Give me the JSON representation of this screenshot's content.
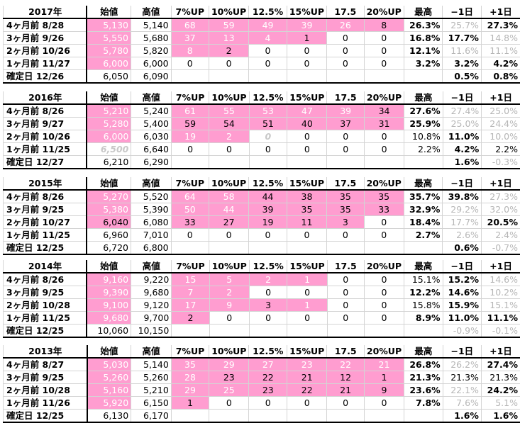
{
  "headers": {
    "open": "始値",
    "high": "高値",
    "p7": "7%UP",
    "p10": "10%UP",
    "p125": "12.5%",
    "p15": "15%UP",
    "p175": "17.5",
    "p20": "20%UP",
    "max": "最高",
    "minus1": "−1日",
    "plus1": "+1日"
  },
  "blocks": [
    {
      "year": "2017年",
      "rows": [
        {
          "label": "4ヶ月前 8/28",
          "open": "5,130",
          "high": "5,140",
          "p7": "68",
          "p10": "59",
          "p125": "49",
          "p15": "39",
          "p175": "26",
          "p20": "8",
          "max": "26.3%",
          "m1": "25.7%",
          "p1": "27.3%"
        },
        {
          "label": "3ヶ月前 9/26",
          "open": "5,550",
          "high": "5,680",
          "p7": "37",
          "p10": "13",
          "p125": "4",
          "p15": "1",
          "p175": "0",
          "p20": "0",
          "max": "16.8%",
          "m1": "17.7%",
          "p1": "14.8%"
        },
        {
          "label": "2ヶ月前 10/26",
          "open": "5,780",
          "high": "5,820",
          "p7": "8",
          "p10": "2",
          "p125": "0",
          "p15": "0",
          "p175": "0",
          "p20": "0",
          "max": "12.1%",
          "m1": "11.6%",
          "p1": "11.1%"
        },
        {
          "label": "1ヶ月前 11/27",
          "open": "6,000",
          "high": "6,000",
          "p7": "0",
          "p10": "0",
          "p125": "0",
          "p15": "0",
          "p175": "0",
          "p20": "0",
          "max": "3.2%",
          "m1": "3.2%",
          "p1": "4.2%"
        }
      ],
      "final": {
        "label": "確定日 12/26",
        "open": "6,050",
        "high": "6,090",
        "m1": "0.5%",
        "p1": "0.8%"
      }
    },
    {
      "year": "2016年",
      "rows": [
        {
          "label": "4ヶ月前 8/26",
          "open": "5,210",
          "high": "5,240",
          "p7": "61",
          "p10": "55",
          "p125": "53",
          "p15": "47",
          "p175": "39",
          "p20": "34",
          "max": "27.6%",
          "m1": "27.4%",
          "p1": "25.0%"
        },
        {
          "label": "3ヶ月前 9/27",
          "open": "5,280",
          "high": "5,400",
          "p7": "59",
          "p10": "54",
          "p125": "51",
          "p15": "40",
          "p175": "37",
          "p20": "31",
          "max": "25.9%",
          "m1": "25.0%",
          "p1": "24.4%"
        },
        {
          "label": "2ヶ月前 10/26",
          "open": "6,000",
          "high": "6,030",
          "p7": "19",
          "p10": "2",
          "p125": "0",
          "p15": "0",
          "p175": "0",
          "p20": "0",
          "max": "10.8%",
          "m1": "11.0%",
          "p1": "10.0%"
        },
        {
          "label": "1ヶ月前 11/25",
          "open": "6,500",
          "high": "6,640",
          "p7": "0",
          "p10": "0",
          "p125": "0",
          "p15": "0",
          "p175": "0",
          "p20": "0",
          "max": "2.2%",
          "m1": "4.2%",
          "p1": "2.2%"
        }
      ],
      "final": {
        "label": "確定日 12/27",
        "open": "6,210",
        "high": "6,290",
        "m1": "1.6%",
        "p1": "-0.3%"
      }
    },
    {
      "year": "2015年",
      "rows": [
        {
          "label": "4ヶ月前 8/26",
          "open": "5,270",
          "high": "5,520",
          "p7": "64",
          "p10": "58",
          "p125": "44",
          "p15": "38",
          "p175": "35",
          "p20": "35",
          "max": "35.7%",
          "m1": "39.8%",
          "p1": "27.3%"
        },
        {
          "label": "3ヶ月前 9/25",
          "open": "5,380",
          "high": "5,390",
          "p7": "50",
          "p10": "44",
          "p125": "39",
          "p15": "35",
          "p175": "35",
          "p20": "33",
          "max": "32.9%",
          "m1": "29.2%",
          "p1": "32.0%"
        },
        {
          "label": "2ヶ月前 10/27",
          "open": "6,040",
          "high": "6,080",
          "p7": "33",
          "p10": "27",
          "p125": "19",
          "p15": "11",
          "p175": "3",
          "p20": "0",
          "max": "18.4%",
          "m1": "17.7%",
          "p1": "20.5%"
        },
        {
          "label": "1ヶ月前 11/25",
          "open": "6,960",
          "high": "7,010",
          "p7": "0",
          "p10": "0",
          "p125": "0",
          "p15": "0",
          "p175": "0",
          "p20": "0",
          "max": "2.7%",
          "m1": "2.6%",
          "p1": "2.4%"
        }
      ],
      "final": {
        "label": "確定日 12/25",
        "open": "6,720",
        "high": "6,800",
        "m1": "0.6%",
        "p1": "-0.7%"
      }
    },
    {
      "year": "2014年",
      "rows": [
        {
          "label": "4ヶ月前 8/26",
          "open": "9,160",
          "high": "9,220",
          "p7": "15",
          "p10": "5",
          "p125": "2",
          "p15": "1",
          "p175": "0",
          "p20": "0",
          "max": "15.1%",
          "m1": "15.2%",
          "p1": "14.6%"
        },
        {
          "label": "3ヶ月前 9/25",
          "open": "9,390",
          "high": "9,680",
          "p7": "7",
          "p10": "2",
          "p125": "0",
          "p15": "0",
          "p175": "0",
          "p20": "0",
          "max": "12.2%",
          "m1": "14.6%",
          "p1": "10.2%"
        },
        {
          "label": "2ヶ月前 10/28",
          "open": "9,100",
          "high": "9,120",
          "p7": "17",
          "p10": "9",
          "p125": "3",
          "p15": "1",
          "p175": "0",
          "p20": "0",
          "max": "15.8%",
          "m1": "15.9%",
          "p1": "15.1%"
        },
        {
          "label": "1ヶ月前 11/25",
          "open": "9,680",
          "high": "9,700",
          "p7": "2",
          "p10": "0",
          "p125": "0",
          "p15": "0",
          "p175": "0",
          "p20": "0",
          "max": "8.9%",
          "m1": "11.0%",
          "p1": "11.1%"
        }
      ],
      "final": {
        "label": "確定日 12/25",
        "open": "10,060",
        "high": "10,150",
        "m1": "-0.9%",
        "p1": "-0.1%"
      }
    },
    {
      "year": "2013年",
      "rows": [
        {
          "label": "4ヶ月前 8/27",
          "open": "5,030",
          "high": "5,140",
          "p7": "35",
          "p10": "29",
          "p125": "27",
          "p15": "23",
          "p175": "22",
          "p20": "21",
          "max": "26.8%",
          "m1": "26.2%",
          "p1": "27.4%"
        },
        {
          "label": "3ヶ月前 9/25",
          "open": "5,260",
          "high": "5,260",
          "p7": "28",
          "p10": "23",
          "p125": "22",
          "p15": "21",
          "p175": "12",
          "p20": "1",
          "max": "21.3%",
          "m1": "21.3%",
          "p1": "21.3%"
        },
        {
          "label": "2ヶ月前 10/28",
          "open": "5,160",
          "high": "5,210",
          "p7": "29",
          "p10": "25",
          "p125": "23",
          "p15": "22",
          "p175": "21",
          "p20": "9",
          "max": "23.6%",
          "m1": "22.1%",
          "p1": "24.2%"
        },
        {
          "label": "1ヶ月前 11/26",
          "open": "5,920",
          "high": "6,150",
          "p7": "1",
          "p10": "0",
          "p125": "0",
          "p15": "0",
          "p175": "0",
          "p20": "0",
          "max": "7.8%",
          "m1": "7.6%",
          "p1": "5.1%"
        }
      ],
      "final": {
        "label": "確定日 12/25",
        "open": "6,130",
        "high": "6,170",
        "m1": "1.6%",
        "p1": "1.6%"
      }
    }
  ],
  "colors": {
    "pink": "#ff9dd0",
    "gray_text": "#b6b6b6",
    "grid": "#d4d4d4"
  }
}
